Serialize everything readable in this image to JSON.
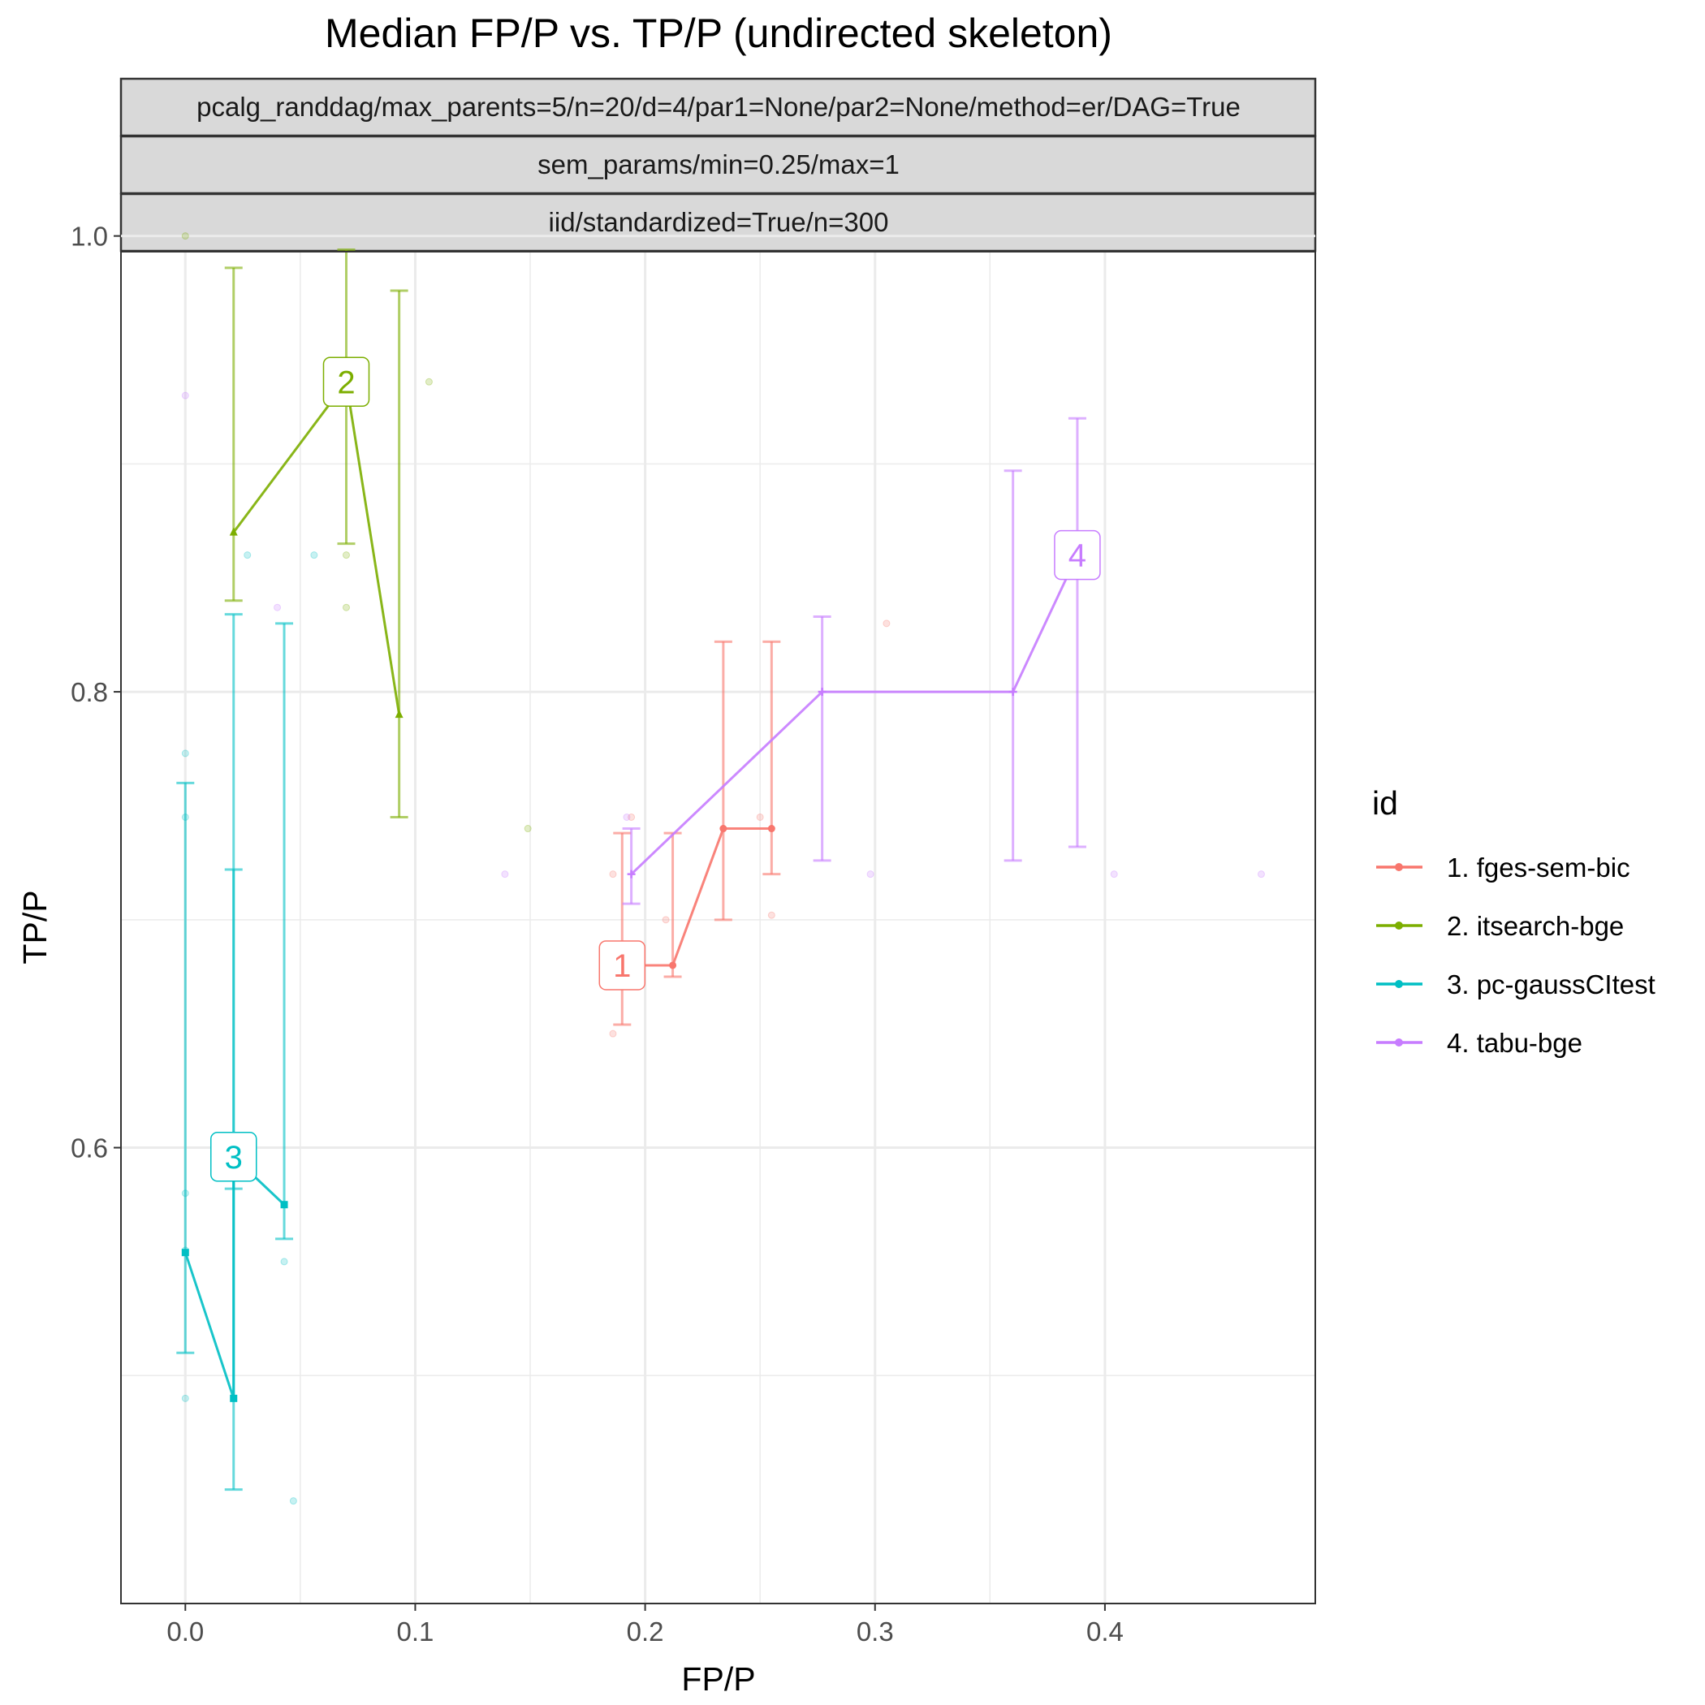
{
  "chart_data": {
    "type": "scatter",
    "title": "Median FP/P vs. TP/P (undirected skeleton)",
    "strips": [
      "pcalg_randdag/max_parents=5/n=20/d=4/par1=None/par2=None/method=er/DAG=True",
      "sem_params/min=0.25/max=1",
      "iid/standardized=True/n=300"
    ],
    "xlabel": "FP/P",
    "ylabel": "TP/P",
    "xlim": [
      -0.028,
      0.4915
    ],
    "ylim": [
      0.4,
      0.9931
    ],
    "x_ticks": [
      0.0,
      0.1,
      0.2,
      0.3,
      0.4
    ],
    "x_tick_labels": [
      "0.0",
      "0.1",
      "0.2",
      "0.3",
      "0.4"
    ],
    "y_ticks": [
      0.6,
      0.8,
      1.0
    ],
    "y_tick_labels": [
      "0.6",
      "0.8",
      "1.0"
    ],
    "legend_title": "id",
    "legend_position": "right",
    "series": [
      {
        "name": "1. fges-sem-bic",
        "color": "#F8766D",
        "marker": "circle",
        "label": "1",
        "label_at": [
          0.19,
          0.68
        ],
        "points": [
          {
            "x": 0.19,
            "y": 0.68,
            "ylo": 0.654,
            "yhi": 0.738
          },
          {
            "x": 0.212,
            "y": 0.68,
            "ylo": 0.675,
            "yhi": 0.738
          },
          {
            "x": 0.234,
            "y": 0.74,
            "ylo": 0.7,
            "yhi": 0.822
          },
          {
            "x": 0.255,
            "y": 0.74,
            "ylo": 0.72,
            "yhi": 0.822
          }
        ],
        "scatter": [
          [
            0.186,
            0.65
          ],
          [
            0.186,
            0.72
          ],
          [
            0.194,
            0.745
          ],
          [
            0.209,
            0.7
          ],
          [
            0.25,
            0.745
          ],
          [
            0.255,
            0.702
          ],
          [
            0.305,
            0.83
          ]
        ]
      },
      {
        "name": "2. itsearch-bge",
        "color": "#7CAE00",
        "marker": "triangle",
        "label": "2",
        "label_at": [
          0.07,
          0.936
        ],
        "points": [
          {
            "x": 0.021,
            "y": 0.87,
            "ylo": 0.84,
            "yhi": 0.986
          },
          {
            "x": 0.07,
            "y": 0.936,
            "ylo": 0.865,
            "yhi": 0.994
          },
          {
            "x": 0.093,
            "y": 0.79,
            "ylo": 0.745,
            "yhi": 0.976
          }
        ],
        "scatter": [
          [
            0.0,
            1.0
          ],
          [
            0.07,
            0.86
          ],
          [
            0.07,
            0.837
          ],
          [
            0.106,
            0.936
          ],
          [
            0.149,
            0.74
          ]
        ]
      },
      {
        "name": "3. pc-gaussCItest",
        "color": "#00BFC4",
        "marker": "square",
        "label": "3",
        "label_at": [
          0.021,
          0.596
        ],
        "points": [
          {
            "x": 0.0,
            "y": 0.554,
            "ylo": 0.51,
            "yhi": 0.76
          },
          {
            "x": 0.021,
            "y": 0.49,
            "ylo": 0.45,
            "yhi": 0.722
          },
          {
            "x": 0.021,
            "y": 0.596,
            "ylo": 0.582,
            "yhi": 0.834
          },
          {
            "x": 0.043,
            "y": 0.575,
            "ylo": 0.56,
            "yhi": 0.83
          }
        ],
        "scatter": [
          [
            0.0,
            0.773
          ],
          [
            0.0,
            0.745
          ],
          [
            0.0,
            0.58
          ],
          [
            0.0,
            0.555
          ],
          [
            0.0,
            0.49
          ],
          [
            0.027,
            0.86
          ],
          [
            0.043,
            0.55
          ],
          [
            0.047,
            0.445
          ],
          [
            0.056,
            0.86
          ]
        ]
      },
      {
        "name": "4. tabu-bge",
        "color": "#C77CFF",
        "marker": "plus",
        "label": "4",
        "label_at": [
          0.388,
          0.86
        ],
        "points": [
          {
            "x": 0.194,
            "y": 0.72,
            "ylo": 0.707,
            "yhi": 0.74
          },
          {
            "x": 0.277,
            "y": 0.8,
            "ylo": 0.726,
            "yhi": 0.833
          },
          {
            "x": 0.36,
            "y": 0.8,
            "ylo": 0.726,
            "yhi": 0.897
          },
          {
            "x": 0.388,
            "y": 0.86,
            "ylo": 0.732,
            "yhi": 0.92
          }
        ],
        "scatter": [
          [
            0.0,
            0.93
          ],
          [
            0.04,
            0.837
          ],
          [
            0.139,
            0.72
          ],
          [
            0.192,
            0.745
          ],
          [
            0.298,
            0.72
          ],
          [
            0.404,
            0.72
          ],
          [
            0.468,
            0.72
          ]
        ]
      }
    ]
  }
}
